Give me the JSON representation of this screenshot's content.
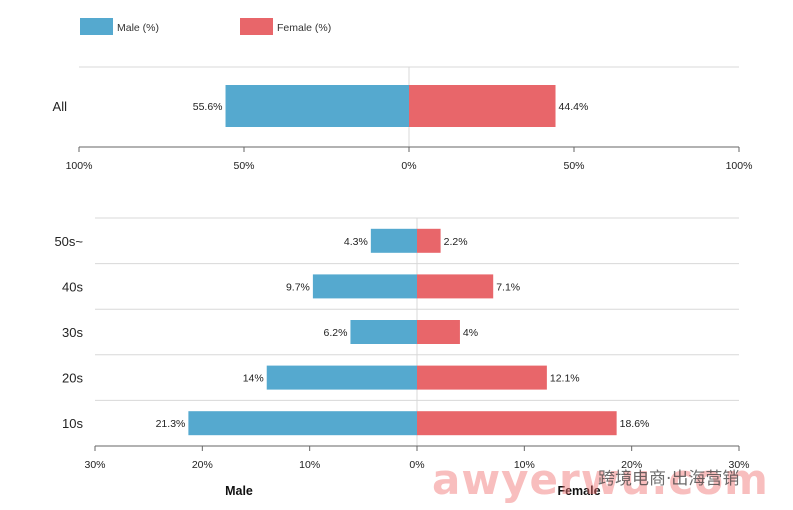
{
  "chart_data": [
    {
      "type": "bar",
      "orientation": "horizontal-diverging",
      "categories": [
        "All"
      ],
      "series": [
        {
          "name": "Male (%)",
          "values": [
            55.6
          ],
          "color": "#55a9cf",
          "direction": "left"
        },
        {
          "name": "Female (%)",
          "values": [
            44.4
          ],
          "color": "#e8666a",
          "direction": "right"
        }
      ],
      "value_labels": {
        "left": [
          "55.6%"
        ],
        "right": [
          "44.4%"
        ]
      },
      "xticks": [
        "100%",
        "50%",
        "0%",
        "50%",
        "100%"
      ],
      "xlim": [
        -100,
        100
      ],
      "legend": "top-left"
    },
    {
      "type": "bar",
      "orientation": "horizontal-diverging",
      "categories": [
        "50s~",
        "40s",
        "30s",
        "20s",
        "10s"
      ],
      "series": [
        {
          "name": "Male",
          "values": [
            4.3,
            9.7,
            6.2,
            14,
            21.3
          ],
          "color": "#55a9cf",
          "direction": "left"
        },
        {
          "name": "Female",
          "values": [
            2.2,
            7.1,
            4,
            12.1,
            18.6
          ],
          "color": "#e8666a",
          "direction": "right"
        }
      ],
      "value_labels": {
        "left": [
          "4.3%",
          "9.7%",
          "6.2%",
          "14%",
          "21.3%"
        ],
        "right": [
          "2.2%",
          "7.1%",
          "4%",
          "12.1%",
          "18.6%"
        ]
      },
      "xticks": [
        "30%",
        "20%",
        "10%",
        "0%",
        "10%",
        "20%",
        "30%"
      ],
      "xlim": [
        -30,
        30
      ],
      "axis_titles": {
        "left": "Male",
        "right": "Female"
      }
    }
  ],
  "legend": {
    "items": [
      {
        "label": "Male (%)",
        "color": "#55a9cf"
      },
      {
        "label": "Female (%)",
        "color": "#e8666a"
      }
    ]
  },
  "watermark": {
    "main": "awyerwu.com",
    "secondary": "跨境电商·出海营销"
  }
}
